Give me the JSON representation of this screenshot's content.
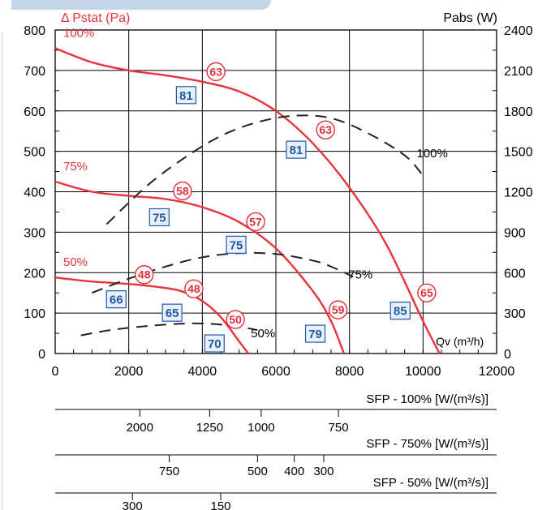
{
  "chart_data": {
    "type": "line",
    "left_axis": {
      "label": "Δ Pstat (Pa)",
      "range": [
        0,
        800
      ],
      "ticks": [
        "0",
        "100",
        "200",
        "300",
        "400",
        "500",
        "600",
        "700",
        "800"
      ]
    },
    "right_axis": {
      "label": "Pabs (W)",
      "range": [
        0,
        2400
      ],
      "ticks": [
        "0",
        "300",
        "600",
        "900",
        "1200",
        "1500",
        "1800",
        "2100",
        "2400"
      ]
    },
    "x_axis": {
      "range": [
        0,
        12000
      ],
      "ticks": [
        "0",
        "2000",
        "4000",
        "6000",
        "8000",
        "10000",
        "12000"
      ],
      "annotation": "Qv (m³/h)"
    },
    "grid": true,
    "pressure_curves": [
      {
        "name": "100%",
        "points": [
          [
            0,
            755
          ],
          [
            1000,
            720
          ],
          [
            2000,
            700
          ],
          [
            3000,
            688
          ],
          [
            4000,
            672
          ],
          [
            5000,
            648
          ],
          [
            6000,
            600
          ],
          [
            7000,
            520
          ],
          [
            8000,
            410
          ],
          [
            9000,
            270
          ],
          [
            10000,
            80
          ],
          [
            10450,
            0
          ]
        ]
      },
      {
        "name": "75%",
        "points": [
          [
            0,
            425
          ],
          [
            1000,
            400
          ],
          [
            2000,
            390
          ],
          [
            3000,
            382
          ],
          [
            4000,
            362
          ],
          [
            5000,
            325
          ],
          [
            6000,
            260
          ],
          [
            7000,
            155
          ],
          [
            7500,
            80
          ],
          [
            7850,
            0
          ]
        ]
      },
      {
        "name": "50%",
        "points": [
          [
            0,
            188
          ],
          [
            1000,
            178
          ],
          [
            2000,
            172
          ],
          [
            3000,
            162
          ],
          [
            3500,
            152
          ],
          [
            4000,
            130
          ],
          [
            4500,
            90
          ],
          [
            5000,
            30
          ],
          [
            5250,
            0
          ]
        ]
      }
    ],
    "power_curves": [
      {
        "name": "100%",
        "points": [
          [
            1400,
            320
          ],
          [
            2500,
            415
          ],
          [
            3500,
            483
          ],
          [
            4500,
            538
          ],
          [
            5500,
            572
          ],
          [
            6500,
            588
          ],
          [
            7500,
            582
          ],
          [
            8500,
            545
          ],
          [
            9500,
            490
          ],
          [
            10000,
            440
          ]
        ]
      },
      {
        "name": "75%",
        "points": [
          [
            1000,
            150
          ],
          [
            2000,
            185
          ],
          [
            3000,
            215
          ],
          [
            4000,
            238
          ],
          [
            5000,
            248
          ],
          [
            6000,
            246
          ],
          [
            7000,
            230
          ],
          [
            7500,
            215
          ],
          [
            8100,
            190
          ]
        ]
      },
      {
        "name": "50%",
        "points": [
          [
            700,
            45
          ],
          [
            1500,
            58
          ],
          [
            2500,
            68
          ],
          [
            3500,
            74
          ],
          [
            4300,
            73
          ],
          [
            5000,
            66
          ],
          [
            5500,
            58
          ]
        ]
      }
    ],
    "efficiency_labels_red": [
      {
        "text": "63",
        "x": 4370,
        "y": 697
      },
      {
        "text": "63",
        "x": 7350,
        "y": 553
      },
      {
        "text": "58",
        "x": 3460,
        "y": 402
      },
      {
        "text": "57",
        "x": 5450,
        "y": 326
      },
      {
        "text": "48",
        "x": 2420,
        "y": 195
      },
      {
        "text": "48",
        "x": 3770,
        "y": 160
      },
      {
        "text": "50",
        "x": 4900,
        "y": 84
      },
      {
        "text": "59",
        "x": 7690,
        "y": 108
      },
      {
        "text": "65",
        "x": 10100,
        "y": 150
      }
    ],
    "efficiency_labels_blue": [
      {
        "text": "81",
        "x": 3560,
        "y": 640
      },
      {
        "text": "81",
        "x": 6550,
        "y": 505
      },
      {
        "text": "75",
        "x": 2830,
        "y": 338
      },
      {
        "text": "75",
        "x": 4920,
        "y": 270
      },
      {
        "text": "66",
        "x": 1660,
        "y": 135
      },
      {
        "text": "65",
        "x": 3180,
        "y": 102
      },
      {
        "text": "70",
        "x": 4330,
        "y": 26
      },
      {
        "text": "79",
        "x": 7070,
        "y": 50
      },
      {
        "text": "85",
        "x": 9380,
        "y": 107
      }
    ],
    "power_labels": [
      {
        "text": "100%",
        "x": 10250,
        "y": 485
      },
      {
        "text": "75%",
        "x": 8300,
        "y": 185
      },
      {
        "text": "50%",
        "x": 5650,
        "y": 40
      }
    ],
    "series_colors": {
      "pressure": "#e8323c",
      "power": "#222222",
      "label_red": "#e0303a",
      "label_blue": "#1f5aa6"
    },
    "sfp_scales": [
      {
        "label": "SFP - 100% [W/(m³/s)]",
        "ticks": [
          {
            "text": "2000",
            "x": 2300
          },
          {
            "text": "1250",
            "x": 4200
          },
          {
            "text": "1000",
            "x": 5600
          },
          {
            "text": "750",
            "x": 7700
          }
        ]
      },
      {
        "label": "SFP - 750% [W/(m³/s)]",
        "ticks": [
          {
            "text": "750",
            "x": 3100
          },
          {
            "text": "500",
            "x": 5500
          },
          {
            "text": "400",
            "x": 6500
          },
          {
            "text": "300",
            "x": 7300
          }
        ]
      },
      {
        "label": "SFP - 50% [W/(m³/s)]",
        "ticks": [
          {
            "text": "300",
            "x": 2100
          },
          {
            "text": "150",
            "x": 4500
          }
        ]
      }
    ]
  }
}
